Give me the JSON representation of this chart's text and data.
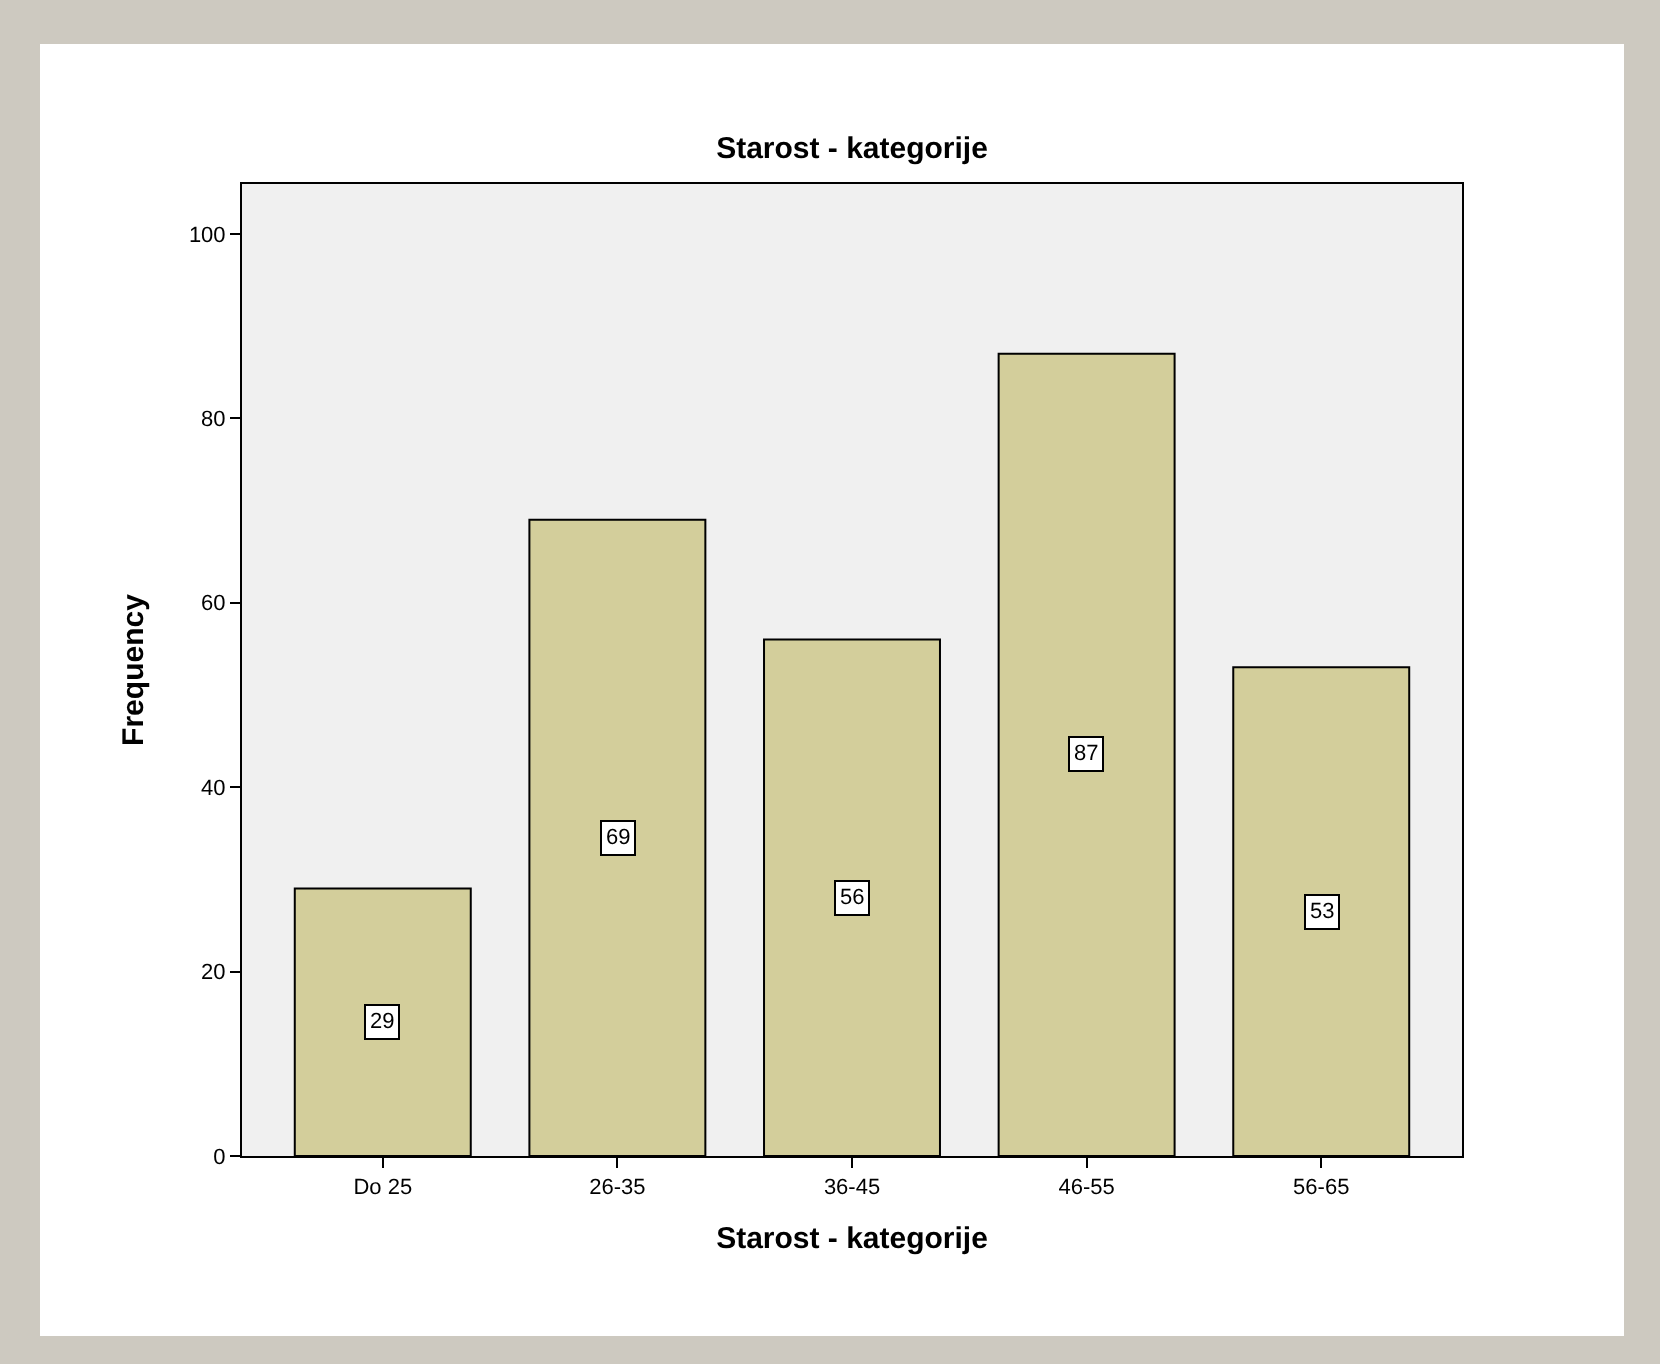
{
  "chart_data": {
    "type": "bar",
    "title": "Starost - kategorije",
    "xlabel": "Starost - kategorije",
    "ylabel": "Frequency",
    "categories": [
      "Do 25",
      "26-35",
      "36-45",
      "46-55",
      "56-65"
    ],
    "values": [
      29,
      69,
      56,
      87,
      53
    ],
    "color": "#d3ce9b",
    "ylim": [
      0,
      105.4
    ],
    "yticks": [
      0,
      20,
      40,
      60,
      80,
      100
    ],
    "grid": false,
    "data_labels": true
  }
}
